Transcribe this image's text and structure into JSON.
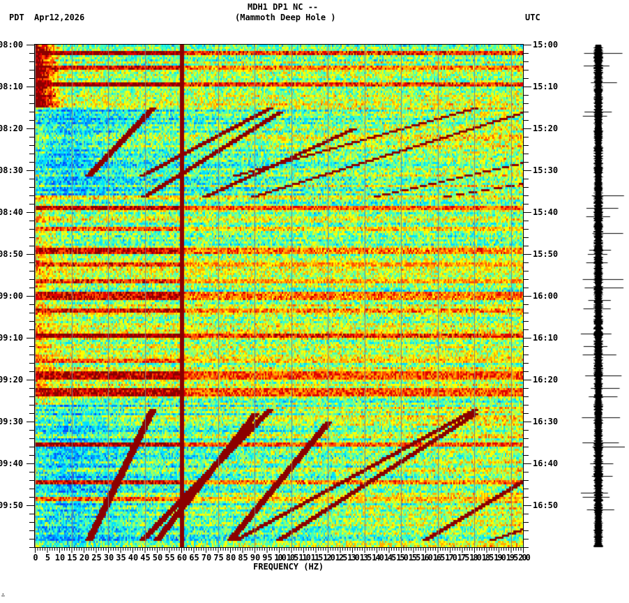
{
  "header": {
    "title_line1": "MDH1 DP1 NC --",
    "title_line2": "(Mammoth Deep Hole )",
    "timezone_left": "PDT",
    "date": "Apr12,2026",
    "timezone_right": "UTC"
  },
  "footer_mark": "∴",
  "colors": {
    "background": "#ffffff",
    "axis": "#000000",
    "gridline": "#808080",
    "colormap": [
      "#0050ff",
      "#0096ff",
      "#00e0ff",
      "#40ffc0",
      "#a0ff60",
      "#ffff00",
      "#ffb000",
      "#ff5000",
      "#e00000",
      "#8b0000"
    ]
  },
  "chart_data": {
    "type": "heatmap",
    "title": "MDH1 DP1 NC -- (Mammoth Deep Hole )",
    "subtitle": "Apr12,2026",
    "xlabel": "FREQUENCY (HZ)",
    "ylabel_left": "PDT",
    "ylabel_right": "UTC",
    "xlim": [
      0,
      200
    ],
    "x_ticks": [
      0,
      5,
      10,
      15,
      20,
      25,
      30,
      35,
      40,
      45,
      50,
      55,
      60,
      65,
      70,
      75,
      80,
      85,
      90,
      95,
      100,
      105,
      110,
      115,
      120,
      125,
      130,
      135,
      140,
      145,
      150,
      155,
      160,
      165,
      170,
      175,
      180,
      185,
      190,
      195,
      200
    ],
    "x_tick_labels": [
      "0",
      "5",
      "10",
      "15",
      "20",
      "25",
      "30",
      "35",
      "40",
      "45",
      "50",
      "55",
      "60",
      "65",
      "70",
      "75",
      "80",
      "85",
      "90",
      "95",
      "100",
      "105",
      "110",
      "115",
      "120",
      "125",
      "130",
      "135",
      "140",
      "145",
      "150",
      "155",
      "160",
      "165",
      "170",
      "175",
      "180",
      "185",
      "190",
      "195",
      "200"
    ],
    "y_ticks_left": [
      "08:00",
      "08:10",
      "08:20",
      "08:30",
      "08:40",
      "08:50",
      "09:00",
      "09:10",
      "09:20",
      "09:30",
      "09:40",
      "09:50"
    ],
    "y_ticks_right": [
      "15:00",
      "15:10",
      "15:20",
      "15:30",
      "15:40",
      "15:50",
      "16:00",
      "16:10",
      "16:20",
      "16:30",
      "16:40",
      "16:50"
    ],
    "time_range_minutes": 120,
    "minor_tick_minutes": 2,
    "vertical_gridlines_every_hz": 15,
    "persistent_lines_hz": [
      60
    ],
    "high_energy_bands_min": [
      {
        "start": 1.5,
        "end": 2.5,
        "intensity": 1.0
      },
      {
        "start": 5,
        "end": 6,
        "intensity": 0.9
      },
      {
        "start": 9,
        "end": 10,
        "intensity": 1.0
      },
      {
        "start": 38.5,
        "end": 39.5,
        "intensity": 0.95
      },
      {
        "start": 43.5,
        "end": 44.5,
        "intensity": 0.8
      },
      {
        "start": 48.5,
        "end": 50,
        "intensity": 0.9
      },
      {
        "start": 52,
        "end": 53,
        "intensity": 0.85
      },
      {
        "start": 56,
        "end": 57,
        "intensity": 0.85
      },
      {
        "start": 59,
        "end": 61,
        "intensity": 0.9
      },
      {
        "start": 63,
        "end": 64,
        "intensity": 0.9
      },
      {
        "start": 69,
        "end": 70,
        "intensity": 1.0
      },
      {
        "start": 75,
        "end": 76,
        "intensity": 0.8
      },
      {
        "start": 78,
        "end": 80,
        "intensity": 0.95
      },
      {
        "start": 82,
        "end": 84,
        "intensity": 0.95
      },
      {
        "start": 95,
        "end": 96,
        "intensity": 0.95
      },
      {
        "start": 104,
        "end": 105,
        "intensity": 0.9
      },
      {
        "start": 108,
        "end": 109,
        "intensity": 0.8
      }
    ],
    "quiet_periods_min": [
      {
        "start": 15,
        "end": 36,
        "intensity": 0.2
      },
      {
        "start": 86,
        "end": 120,
        "intensity": 0.25
      }
    ],
    "gliding_tones": [
      {
        "t0": 15,
        "t1": 31,
        "f0": 48,
        "f1": 22
      },
      {
        "t0": 16,
        "t1": 36,
        "f0": 100,
        "f1": 45
      },
      {
        "t0": 20,
        "t1": 36,
        "f0": 130,
        "f1": 70
      },
      {
        "t0": 87,
        "t1": 118,
        "f0": 48,
        "f1": 22
      },
      {
        "t0": 88,
        "t1": 118,
        "f0": 90,
        "f1": 50
      },
      {
        "t0": 90,
        "t1": 118,
        "f0": 120,
        "f1": 80
      }
    ]
  },
  "seismogram": {
    "label": "seismic trace",
    "spike_times_min": [
      2,
      5,
      9,
      16,
      17,
      36,
      39,
      41,
      45,
      49,
      50,
      52,
      56,
      58,
      61,
      63,
      69,
      72,
      74,
      79,
      82,
      84,
      89,
      95,
      96,
      100,
      103,
      107,
      108,
      111
    ]
  }
}
